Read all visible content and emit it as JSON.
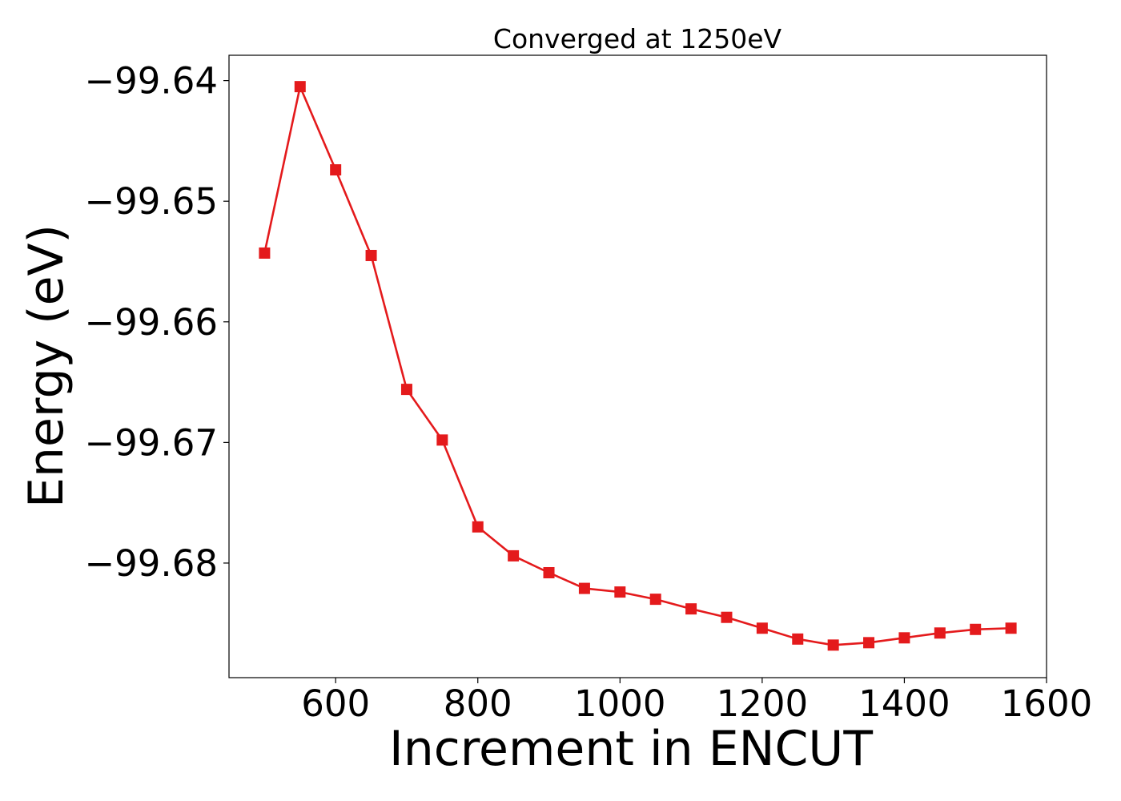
{
  "chart_data": {
    "type": "line",
    "title": "Converged at 1250eV",
    "xlabel": "Increment in ENCUT",
    "ylabel": "Energy (eV)",
    "xlim": [
      450,
      1600
    ],
    "ylim": [
      -99.6895,
      -99.6379
    ],
    "xticks": [
      600,
      800,
      1000,
      1200,
      1400,
      1600
    ],
    "xtick_labels": [
      "600",
      "800",
      "1000",
      "1200",
      "1400",
      "1600"
    ],
    "yticks": [
      -99.64,
      -99.65,
      -99.66,
      -99.67,
      -99.68
    ],
    "ytick_labels": [
      "−99.64",
      "−99.65",
      "−99.66",
      "−99.67",
      "−99.68"
    ],
    "grid": false,
    "marker": "square",
    "color": "#e41a1c",
    "series": [
      {
        "x": [
          500,
          550,
          600,
          650,
          700,
          750,
          800,
          850,
          900,
          950,
          1000,
          1050,
          1100,
          1150,
          1200,
          1250,
          1300,
          1350,
          1400,
          1450,
          1500,
          1550
        ],
        "values": [
          -99.6543,
          -99.6405,
          -99.6474,
          -99.6545,
          -99.6656,
          -99.6698,
          -99.677,
          -99.6794,
          -99.6808,
          -99.6821,
          -99.6824,
          -99.683,
          -99.6838,
          -99.6845,
          -99.6854,
          -99.6863,
          -99.6868,
          -99.6866,
          -99.6862,
          -99.6858,
          -99.6855,
          -99.6854
        ]
      }
    ]
  }
}
